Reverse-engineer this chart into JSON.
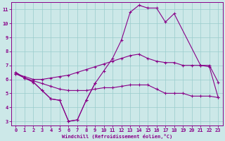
{
  "xlabel": "Windchill (Refroidissement éolien,°C)",
  "bg_color": "#cce8e8",
  "line_color": "#880088",
  "grid_color": "#99cccc",
  "xlim": [
    -0.5,
    23.5
  ],
  "ylim": [
    2.7,
    11.5
  ],
  "xticks": [
    0,
    1,
    2,
    3,
    4,
    5,
    6,
    7,
    8,
    9,
    10,
    11,
    12,
    13,
    14,
    15,
    16,
    17,
    18,
    19,
    20,
    21,
    22,
    23
  ],
  "yticks": [
    3,
    4,
    5,
    6,
    7,
    8,
    9,
    10,
    11
  ],
  "line1_x": [
    0,
    1,
    2,
    3,
    4,
    5,
    6,
    7,
    8,
    9
  ],
  "line1_y": [
    6.5,
    6.1,
    5.8,
    5.2,
    4.6,
    4.5,
    3.0,
    3.1,
    4.5,
    5.7
  ],
  "line2_x": [
    0,
    1,
    2,
    3,
    4,
    5,
    6,
    7,
    8,
    9,
    10,
    11,
    12,
    13,
    14,
    15,
    16,
    17,
    18,
    21,
    22,
    23
  ],
  "line2_y": [
    6.5,
    6.1,
    5.8,
    5.2,
    4.6,
    4.5,
    3.0,
    3.1,
    4.5,
    5.7,
    6.6,
    7.5,
    8.8,
    10.8,
    11.3,
    11.1,
    11.1,
    10.1,
    10.7,
    7.0,
    6.9,
    4.7
  ],
  "line3_x": [
    0,
    1,
    2,
    3,
    4,
    5,
    6,
    7,
    8,
    9,
    10,
    11,
    12,
    13,
    14,
    15,
    16,
    17,
    18,
    19,
    20,
    21,
    22,
    23
  ],
  "line3_y": [
    6.4,
    6.1,
    5.9,
    5.7,
    5.5,
    5.3,
    5.2,
    5.2,
    5.2,
    5.3,
    5.4,
    5.4,
    5.5,
    5.6,
    5.6,
    5.6,
    5.3,
    5.0,
    5.0,
    5.0,
    4.8,
    4.8,
    4.8,
    4.7
  ],
  "line4_x": [
    0,
    1,
    2,
    3,
    4,
    5,
    6,
    7,
    8,
    9,
    10,
    11,
    12,
    13,
    14,
    15,
    16,
    17,
    18,
    19,
    20,
    21,
    22,
    23
  ],
  "line4_y": [
    6.4,
    6.2,
    6.0,
    6.0,
    6.1,
    6.2,
    6.3,
    6.5,
    6.7,
    6.9,
    7.1,
    7.3,
    7.5,
    7.7,
    7.8,
    7.5,
    7.3,
    7.2,
    7.2,
    7.0,
    7.0,
    7.0,
    7.0,
    5.8
  ]
}
